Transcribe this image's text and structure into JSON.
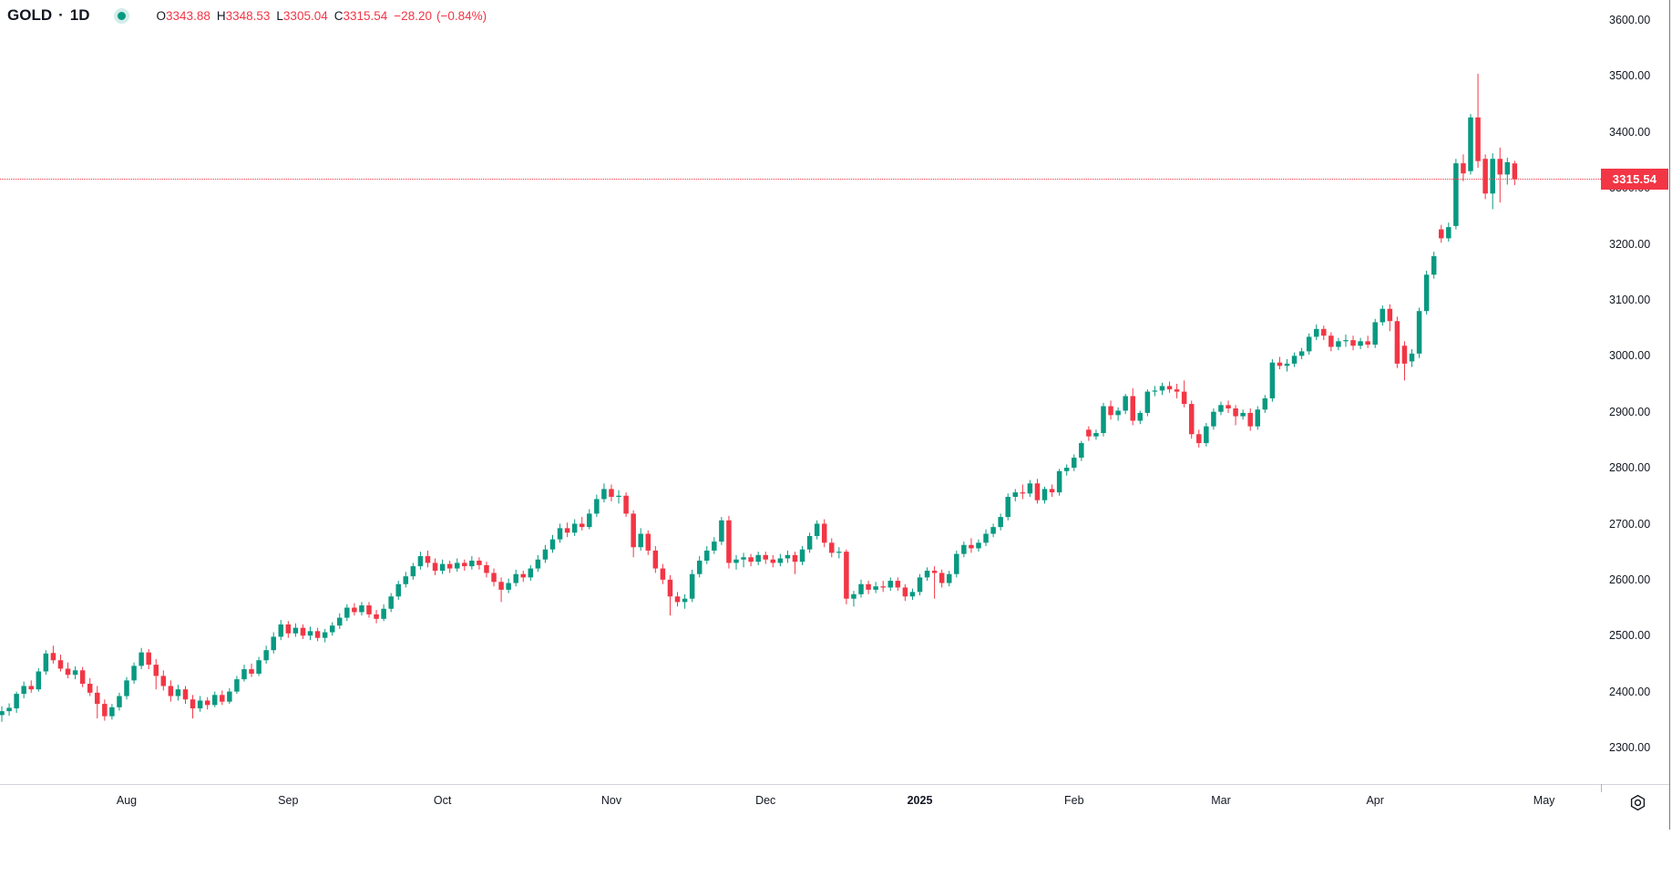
{
  "header": {
    "symbol": "GOLD",
    "separator": "·",
    "interval": "1D",
    "status_dot": "market-open",
    "ohlc": {
      "o_label": "O",
      "o_value": "3343.88",
      "h_label": "H",
      "h_value": "3348.53",
      "l_label": "L",
      "l_value": "3305.04",
      "c_label": "C",
      "c_value": "3315.54",
      "change": "−28.20",
      "change_pct": "(−0.84%)"
    }
  },
  "colors": {
    "up": "#089981",
    "down": "#f23645",
    "text": "#131722",
    "price_tag_bg": "#f23645",
    "price_tag_text": "#ffffff",
    "dotted_line": "#f23645"
  },
  "price_axis": {
    "current_price_label": "3315.54",
    "tick_format_suffix": ".00"
  },
  "chart_data": {
    "type": "candlestick",
    "title": "GOLD · 1D",
    "symbol": "GOLD",
    "interval": "1D",
    "legend_position": "top-left",
    "grid": false,
    "y_axis": {
      "min": 2300,
      "max": 3600,
      "step": 100,
      "side": "right"
    },
    "last_close": 3315.54,
    "time_labels": [
      {
        "label": "Aug",
        "index": 17,
        "bold": false
      },
      {
        "label": "Sep",
        "index": 39,
        "bold": false
      },
      {
        "label": "Oct",
        "index": 60,
        "bold": false
      },
      {
        "label": "Nov",
        "index": 83,
        "bold": false
      },
      {
        "label": "Dec",
        "index": 104,
        "bold": false
      },
      {
        "label": "2025",
        "index": 125,
        "bold": true
      },
      {
        "label": "Feb",
        "index": 146,
        "bold": false
      },
      {
        "label": "Mar",
        "index": 166,
        "bold": false
      },
      {
        "label": "Apr",
        "index": 187,
        "bold": false
      },
      {
        "label": "May",
        "index": 210,
        "bold": false
      }
    ],
    "candles_format": [
      "open",
      "high",
      "low",
      "close"
    ],
    "candles": [
      [
        2358,
        2374,
        2346,
        2365
      ],
      [
        2365,
        2379,
        2357,
        2371
      ],
      [
        2370,
        2400,
        2362,
        2396
      ],
      [
        2396,
        2418,
        2388,
        2410
      ],
      [
        2410,
        2420,
        2398,
        2404
      ],
      [
        2404,
        2442,
        2400,
        2436
      ],
      [
        2436,
        2474,
        2430,
        2468
      ],
      [
        2469,
        2482,
        2450,
        2456
      ],
      [
        2456,
        2466,
        2436,
        2441
      ],
      [
        2441,
        2452,
        2424,
        2430
      ],
      [
        2430,
        2445,
        2422,
        2438
      ],
      [
        2438,
        2444,
        2408,
        2414
      ],
      [
        2414,
        2424,
        2392,
        2398
      ],
      [
        2398,
        2410,
        2352,
        2378
      ],
      [
        2378,
        2386,
        2348,
        2356
      ],
      [
        2356,
        2378,
        2350,
        2372
      ],
      [
        2372,
        2398,
        2366,
        2392
      ],
      [
        2392,
        2426,
        2386,
        2420
      ],
      [
        2420,
        2452,
        2414,
        2446
      ],
      [
        2446,
        2478,
        2440,
        2470
      ],
      [
        2470,
        2476,
        2440,
        2448
      ],
      [
        2448,
        2458,
        2404,
        2428
      ],
      [
        2428,
        2438,
        2402,
        2410
      ],
      [
        2410,
        2420,
        2382,
        2392
      ],
      [
        2392,
        2412,
        2384,
        2404
      ],
      [
        2404,
        2410,
        2378,
        2386
      ],
      [
        2386,
        2394,
        2352,
        2370
      ],
      [
        2370,
        2392,
        2364,
        2384
      ],
      [
        2384,
        2390,
        2368,
        2376
      ],
      [
        2376,
        2400,
        2372,
        2394
      ],
      [
        2394,
        2402,
        2376,
        2382
      ],
      [
        2382,
        2406,
        2378,
        2400
      ],
      [
        2400,
        2428,
        2396,
        2422
      ],
      [
        2422,
        2448,
        2418,
        2440
      ],
      [
        2440,
        2450,
        2426,
        2432
      ],
      [
        2432,
        2462,
        2428,
        2456
      ],
      [
        2456,
        2482,
        2450,
        2474
      ],
      [
        2474,
        2506,
        2468,
        2498
      ],
      [
        2498,
        2528,
        2492,
        2520
      ],
      [
        2520,
        2526,
        2496,
        2504
      ],
      [
        2504,
        2522,
        2498,
        2514
      ],
      [
        2514,
        2520,
        2494,
        2500
      ],
      [
        2500,
        2516,
        2492,
        2508
      ],
      [
        2508,
        2514,
        2490,
        2496
      ],
      [
        2496,
        2512,
        2488,
        2506
      ],
      [
        2506,
        2524,
        2500,
        2518
      ],
      [
        2518,
        2540,
        2512,
        2532
      ],
      [
        2532,
        2556,
        2526,
        2550
      ],
      [
        2550,
        2558,
        2536,
        2542
      ],
      [
        2542,
        2560,
        2536,
        2554
      ],
      [
        2554,
        2560,
        2532,
        2538
      ],
      [
        2538,
        2546,
        2522,
        2530
      ],
      [
        2530,
        2556,
        2526,
        2548
      ],
      [
        2548,
        2576,
        2542,
        2570
      ],
      [
        2570,
        2598,
        2564,
        2592
      ],
      [
        2592,
        2614,
        2586,
        2606
      ],
      [
        2606,
        2630,
        2600,
        2624
      ],
      [
        2624,
        2650,
        2618,
        2642
      ],
      [
        2642,
        2652,
        2622,
        2630
      ],
      [
        2630,
        2638,
        2608,
        2616
      ],
      [
        2616,
        2636,
        2610,
        2628
      ],
      [
        2628,
        2634,
        2612,
        2620
      ],
      [
        2620,
        2638,
        2614,
        2630
      ],
      [
        2630,
        2636,
        2616,
        2624
      ],
      [
        2624,
        2642,
        2618,
        2634
      ],
      [
        2634,
        2640,
        2618,
        2626
      ],
      [
        2626,
        2632,
        2604,
        2612
      ],
      [
        2612,
        2620,
        2588,
        2596
      ],
      [
        2596,
        2604,
        2560,
        2582
      ],
      [
        2582,
        2602,
        2576,
        2594
      ],
      [
        2594,
        2618,
        2588,
        2610
      ],
      [
        2610,
        2616,
        2596,
        2604
      ],
      [
        2604,
        2626,
        2598,
        2620
      ],
      [
        2620,
        2644,
        2614,
        2636
      ],
      [
        2636,
        2662,
        2630,
        2654
      ],
      [
        2654,
        2680,
        2648,
        2672
      ],
      [
        2672,
        2700,
        2666,
        2692
      ],
      [
        2692,
        2702,
        2676,
        2684
      ],
      [
        2684,
        2708,
        2678,
        2700
      ],
      [
        2700,
        2712,
        2688,
        2694
      ],
      [
        2694,
        2726,
        2690,
        2718
      ],
      [
        2718,
        2752,
        2712,
        2744
      ],
      [
        2744,
        2772,
        2738,
        2762
      ],
      [
        2762,
        2770,
        2740,
        2748
      ],
      [
        2748,
        2760,
        2736,
        2750
      ],
      [
        2750,
        2756,
        2712,
        2718
      ],
      [
        2718,
        2724,
        2640,
        2658
      ],
      [
        2658,
        2692,
        2652,
        2682
      ],
      [
        2682,
        2688,
        2644,
        2652
      ],
      [
        2652,
        2660,
        2612,
        2620
      ],
      [
        2620,
        2628,
        2592,
        2600
      ],
      [
        2600,
        2608,
        2536,
        2570
      ],
      [
        2570,
        2578,
        2552,
        2560
      ],
      [
        2560,
        2574,
        2548,
        2566
      ],
      [
        2566,
        2618,
        2560,
        2610
      ],
      [
        2610,
        2642,
        2604,
        2634
      ],
      [
        2634,
        2660,
        2628,
        2652
      ],
      [
        2652,
        2676,
        2646,
        2668
      ],
      [
        2668,
        2712,
        2662,
        2706
      ],
      [
        2706,
        2714,
        2620,
        2630
      ],
      [
        2630,
        2644,
        2618,
        2636
      ],
      [
        2636,
        2648,
        2622,
        2640
      ],
      [
        2640,
        2646,
        2624,
        2632
      ],
      [
        2632,
        2650,
        2626,
        2644
      ],
      [
        2644,
        2650,
        2628,
        2636
      ],
      [
        2636,
        2644,
        2622,
        2630
      ],
      [
        2630,
        2646,
        2624,
        2638
      ],
      [
        2638,
        2652,
        2630,
        2644
      ],
      [
        2644,
        2650,
        2610,
        2632
      ],
      [
        2632,
        2660,
        2626,
        2654
      ],
      [
        2654,
        2684,
        2648,
        2678
      ],
      [
        2678,
        2706,
        2672,
        2700
      ],
      [
        2700,
        2708,
        2658,
        2666
      ],
      [
        2666,
        2674,
        2640,
        2648
      ],
      [
        2648,
        2658,
        2638,
        2650
      ],
      [
        2650,
        2654,
        2556,
        2566
      ],
      [
        2566,
        2580,
        2552,
        2574
      ],
      [
        2574,
        2600,
        2568,
        2592
      ],
      [
        2592,
        2598,
        2574,
        2582
      ],
      [
        2582,
        2596,
        2576,
        2588
      ],
      [
        2588,
        2598,
        2578,
        2586
      ],
      [
        2586,
        2604,
        2580,
        2598
      ],
      [
        2598,
        2604,
        2580,
        2586
      ],
      [
        2586,
        2592,
        2562,
        2570
      ],
      [
        2570,
        2584,
        2564,
        2578
      ],
      [
        2578,
        2610,
        2572,
        2604
      ],
      [
        2604,
        2622,
        2598,
        2616
      ],
      [
        2616,
        2624,
        2566,
        2612
      ],
      [
        2612,
        2618,
        2586,
        2594
      ],
      [
        2594,
        2616,
        2588,
        2610
      ],
      [
        2610,
        2652,
        2604,
        2646
      ],
      [
        2646,
        2668,
        2640,
        2662
      ],
      [
        2662,
        2674,
        2648,
        2656
      ],
      [
        2656,
        2672,
        2650,
        2666
      ],
      [
        2666,
        2690,
        2660,
        2682
      ],
      [
        2682,
        2700,
        2676,
        2694
      ],
      [
        2694,
        2718,
        2688,
        2712
      ],
      [
        2712,
        2754,
        2706,
        2748
      ],
      [
        2748,
        2762,
        2740,
        2756
      ],
      [
        2756,
        2770,
        2744,
        2754
      ],
      [
        2754,
        2778,
        2748,
        2772
      ],
      [
        2772,
        2780,
        2736,
        2742
      ],
      [
        2742,
        2766,
        2736,
        2762
      ],
      [
        2762,
        2770,
        2748,
        2756
      ],
      [
        2756,
        2798,
        2750,
        2794
      ],
      [
        2794,
        2806,
        2786,
        2800
      ],
      [
        2800,
        2824,
        2794,
        2818
      ],
      [
        2818,
        2848,
        2812,
        2844
      ],
      [
        2868,
        2874,
        2848,
        2856
      ],
      [
        2856,
        2868,
        2850,
        2862
      ],
      [
        2862,
        2916,
        2856,
        2910
      ],
      [
        2910,
        2920,
        2886,
        2894
      ],
      [
        2894,
        2908,
        2884,
        2902
      ],
      [
        2902,
        2932,
        2896,
        2928
      ],
      [
        2928,
        2942,
        2876,
        2884
      ],
      [
        2884,
        2902,
        2878,
        2898
      ],
      [
        2898,
        2940,
        2892,
        2936
      ],
      [
        2936,
        2946,
        2928,
        2938
      ],
      [
        2938,
        2952,
        2930,
        2946
      ],
      [
        2946,
        2954,
        2934,
        2940
      ],
      [
        2940,
        2950,
        2924,
        2936
      ],
      [
        2936,
        2956,
        2908,
        2914
      ],
      [
        2914,
        2920,
        2852,
        2860
      ],
      [
        2860,
        2868,
        2836,
        2844
      ],
      [
        2844,
        2880,
        2838,
        2874
      ],
      [
        2874,
        2906,
        2868,
        2900
      ],
      [
        2900,
        2918,
        2894,
        2912
      ],
      [
        2912,
        2920,
        2898,
        2906
      ],
      [
        2906,
        2912,
        2876,
        2892
      ],
      [
        2892,
        2904,
        2886,
        2898
      ],
      [
        2898,
        2906,
        2866,
        2874
      ],
      [
        2874,
        2910,
        2868,
        2904
      ],
      [
        2904,
        2930,
        2898,
        2924
      ],
      [
        2924,
        2994,
        2918,
        2988
      ],
      [
        2988,
        2998,
        2976,
        2982
      ],
      [
        2982,
        2994,
        2972,
        2986
      ],
      [
        2986,
        3006,
        2980,
        3000
      ],
      [
        3000,
        3014,
        2994,
        3008
      ],
      [
        3008,
        3040,
        3002,
        3034
      ],
      [
        3034,
        3056,
        3028,
        3048
      ],
      [
        3048,
        3054,
        3028,
        3036
      ],
      [
        3036,
        3042,
        3008,
        3016
      ],
      [
        3016,
        3032,
        3010,
        3026
      ],
      [
        3026,
        3038,
        3016,
        3028
      ],
      [
        3028,
        3036,
        3010,
        3018
      ],
      [
        3018,
        3032,
        3012,
        3026
      ],
      [
        3026,
        3036,
        3014,
        3020
      ],
      [
        3020,
        3066,
        3014,
        3060
      ],
      [
        3060,
        3090,
        3054,
        3084
      ],
      [
        3084,
        3092,
        3044,
        3062
      ],
      [
        3062,
        3070,
        2978,
        2986
      ],
      [
        3018,
        3026,
        2956,
        2986
      ],
      [
        2990,
        3012,
        2980,
        3004
      ],
      [
        3004,
        3086,
        2996,
        3080
      ],
      [
        3080,
        3152,
        3074,
        3145
      ],
      [
        3145,
        3186,
        3138,
        3178
      ],
      [
        3226,
        3234,
        3202,
        3210
      ],
      [
        3210,
        3238,
        3204,
        3230
      ],
      [
        3232,
        3352,
        3226,
        3344
      ],
      [
        3344,
        3360,
        3312,
        3326
      ],
      [
        3330,
        3432,
        3324,
        3426
      ],
      [
        3426,
        3504,
        3336,
        3348
      ],
      [
        3352,
        3360,
        3280,
        3290
      ],
      [
        3290,
        3362,
        3262,
        3352
      ],
      [
        3352,
        3372,
        3274,
        3324
      ],
      [
        3324,
        3354,
        3306,
        3346
      ],
      [
        3343.88,
        3348.53,
        3305.04,
        3315.54
      ]
    ]
  },
  "footer": {
    "camera_icon": "aperture-camera"
  }
}
